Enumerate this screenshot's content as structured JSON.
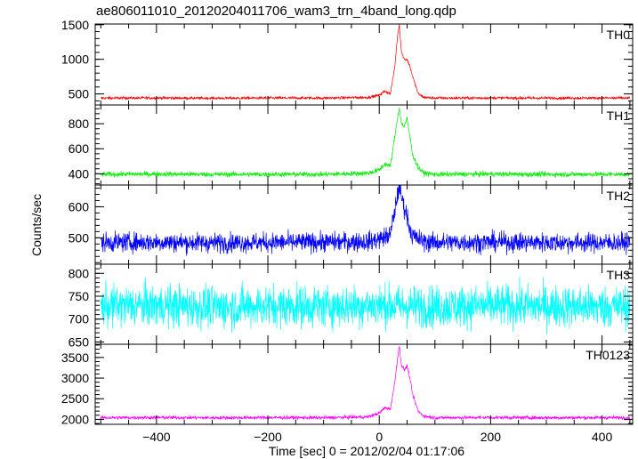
{
  "chart_data": {
    "type": "line",
    "title": "ae806011010_20120204011706_wam3_trn_4band_long.qdp",
    "xlabel": "Time [sec] 0 = 2012/02/04 01:17:06",
    "ylabel": "Counts/sec",
    "xlim": [
      -510,
      455
    ],
    "x_ticks": [
      -400,
      -200,
      0,
      200,
      400
    ],
    "x_tick_labels": [
      "−400",
      "−200",
      "0",
      "200",
      "400"
    ],
    "grid": false,
    "panels": [
      {
        "name": "TH0",
        "color": "#ff0000",
        "ylim": [
          340,
          1510
        ],
        "y_ticks": [
          500,
          1000,
          1500
        ],
        "baseline": 440,
        "noise": 14,
        "series": [
          [
            -500,
            440
          ],
          [
            -400,
            442
          ],
          [
            -300,
            438
          ],
          [
            -200,
            441
          ],
          [
            -100,
            440
          ],
          [
            -20,
            450
          ],
          [
            0,
            480
          ],
          [
            10,
            540
          ],
          [
            20,
            500
          ],
          [
            28,
            900
          ],
          [
            33,
            1350
          ],
          [
            36,
            1500
          ],
          [
            40,
            1100
          ],
          [
            45,
            1000
          ],
          [
            50,
            1000
          ],
          [
            55,
            900
          ],
          [
            60,
            750
          ],
          [
            70,
            500
          ],
          [
            80,
            450
          ],
          [
            100,
            440
          ],
          [
            200,
            442
          ],
          [
            300,
            440
          ],
          [
            400,
            441
          ],
          [
            450,
            440
          ]
        ]
      },
      {
        "name": "TH1",
        "color": "#00ee00",
        "ylim": [
          310,
          950
        ],
        "y_ticks": [
          400,
          600,
          800
        ],
        "baseline": 395,
        "noise": 14,
        "series": [
          [
            -500,
            395
          ],
          [
            -400,
            398
          ],
          [
            -300,
            395
          ],
          [
            -200,
            396
          ],
          [
            -100,
            395
          ],
          [
            -20,
            405
          ],
          [
            0,
            430
          ],
          [
            10,
            480
          ],
          [
            20,
            460
          ],
          [
            28,
            700
          ],
          [
            33,
            850
          ],
          [
            36,
            930
          ],
          [
            40,
            800
          ],
          [
            45,
            780
          ],
          [
            50,
            840
          ],
          [
            55,
            700
          ],
          [
            60,
            550
          ],
          [
            70,
            450
          ],
          [
            80,
            405
          ],
          [
            100,
            395
          ],
          [
            200,
            398
          ],
          [
            300,
            395
          ],
          [
            400,
            396
          ],
          [
            450,
            395
          ]
        ]
      },
      {
        "name": "TH2",
        "color": "#0000ff",
        "ylim": [
          415,
          670
        ],
        "y_ticks": [
          500,
          600
        ],
        "baseline": 485,
        "noise": 22,
        "series": [
          [
            -500,
            485
          ],
          [
            -400,
            486
          ],
          [
            -300,
            484
          ],
          [
            -200,
            485
          ],
          [
            -100,
            486
          ],
          [
            -20,
            488
          ],
          [
            0,
            495
          ],
          [
            20,
            510
          ],
          [
            28,
            590
          ],
          [
            33,
            640
          ],
          [
            36,
            665
          ],
          [
            40,
            630
          ],
          [
            45,
            600
          ],
          [
            50,
            570
          ],
          [
            55,
            530
          ],
          [
            60,
            505
          ],
          [
            80,
            488
          ],
          [
            100,
            485
          ],
          [
            200,
            486
          ],
          [
            300,
            485
          ],
          [
            400,
            484
          ],
          [
            450,
            485
          ]
        ]
      },
      {
        "name": "TH3",
        "color": "#00ffff",
        "ylim": [
          645,
          820
        ],
        "y_ticks": [
          650,
          700,
          750,
          800
        ],
        "baseline": 728,
        "noise": 32,
        "series": [
          [
            -500,
            728
          ],
          [
            -400,
            730
          ],
          [
            -300,
            726
          ],
          [
            -200,
            729
          ],
          [
            -100,
            728
          ],
          [
            0,
            730
          ],
          [
            100,
            727
          ],
          [
            200,
            729
          ],
          [
            300,
            728
          ],
          [
            400,
            727
          ],
          [
            450,
            728
          ]
        ]
      },
      {
        "name": "TH0123",
        "color": "#ff00ff",
        "ylim": [
          1880,
          3820
        ],
        "y_ticks": [
          2000,
          2500,
          3000,
          3500
        ],
        "baseline": 2040,
        "noise": 30,
        "series": [
          [
            -500,
            2040
          ],
          [
            -400,
            2045
          ],
          [
            -300,
            2038
          ],
          [
            -200,
            2042
          ],
          [
            -100,
            2040
          ],
          [
            -20,
            2060
          ],
          [
            0,
            2150
          ],
          [
            10,
            2280
          ],
          [
            20,
            2250
          ],
          [
            28,
            2900
          ],
          [
            33,
            3500
          ],
          [
            36,
            3780
          ],
          [
            40,
            3300
          ],
          [
            45,
            3200
          ],
          [
            50,
            3300
          ],
          [
            55,
            3000
          ],
          [
            60,
            2600
          ],
          [
            70,
            2200
          ],
          [
            80,
            2080
          ],
          [
            100,
            2040
          ],
          [
            200,
            2045
          ],
          [
            300,
            2040
          ],
          [
            400,
            2042
          ],
          [
            450,
            2040
          ]
        ]
      }
    ]
  }
}
